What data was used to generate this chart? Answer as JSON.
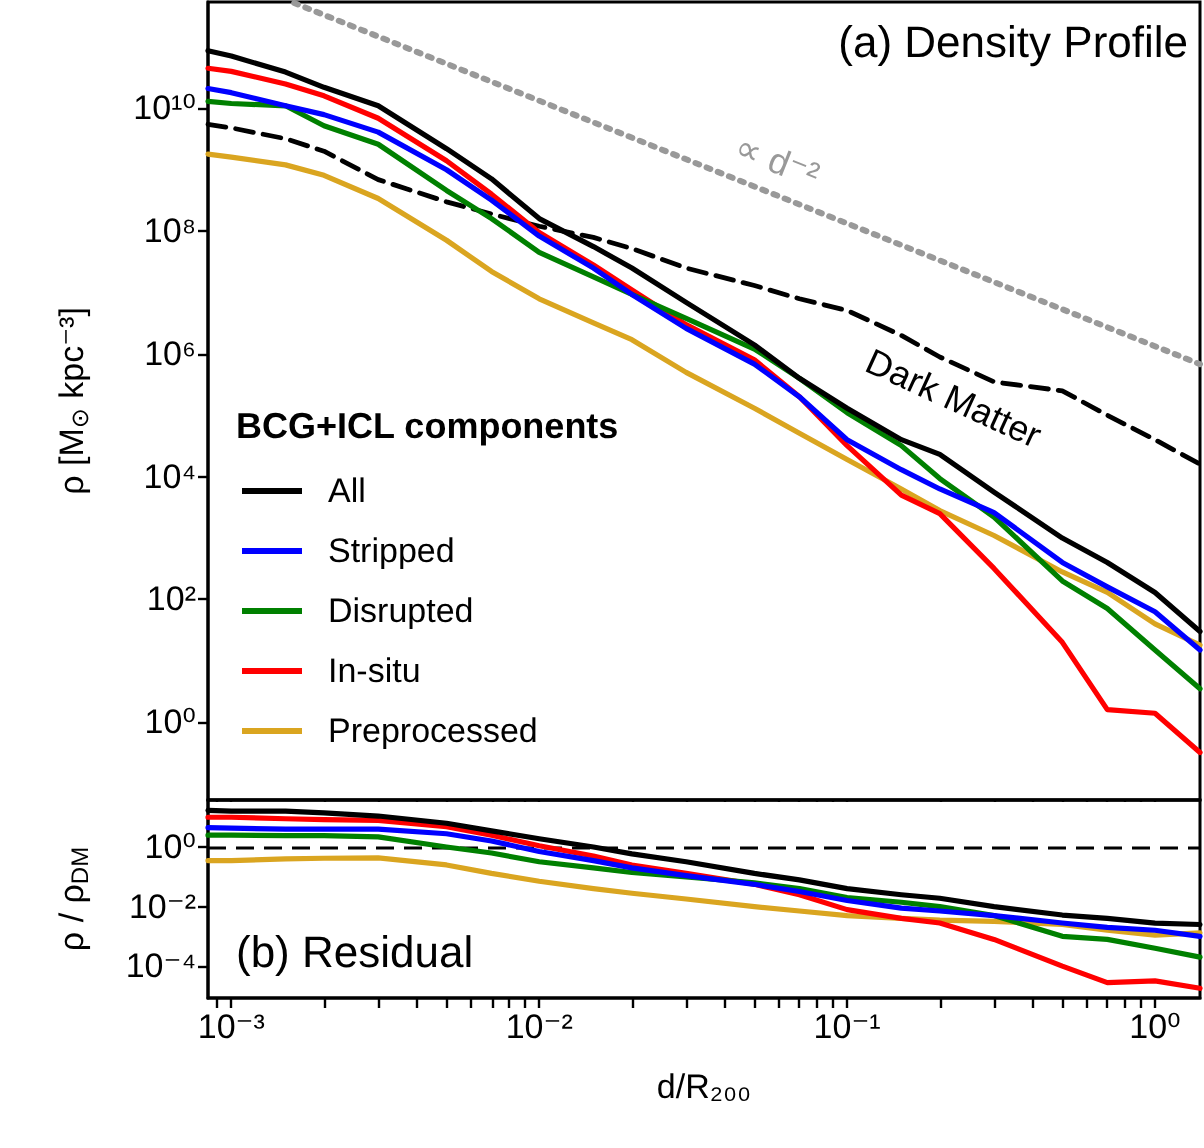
{
  "chart_data": [
    {
      "type": "line",
      "title": "(a) Density Profile",
      "ylabel": "ρ [M$_{⊙}$ kpc⁻³]",
      "legend_title": "BCG+ICL components",
      "legend": "bottom left",
      "log": "xy",
      "marker": "none",
      "tick_labels": "y",
      "x": [
        0.00084,
        0.001,
        0.0015,
        0.002,
        0.003,
        0.005,
        0.007,
        0.01,
        0.015,
        0.02,
        0.03,
        0.05,
        0.07,
        0.1,
        0.15,
        0.2,
        0.3,
        0.5,
        0.7,
        1.0,
        1.4
      ],
      "xlim": [
        0.00084,
        1.4
      ],
      "ylim": [
        0.054,
        540000000000.0
      ],
      "xticks": [
        {
          "value": 0.0009,
          "label": null
        },
        {
          "value": 0.001,
          "label": null
        },
        {
          "value": 0.002,
          "label": null
        },
        {
          "value": 0.003,
          "label": null
        },
        {
          "value": 0.004,
          "label": null
        },
        {
          "value": 0.005,
          "label": null
        },
        {
          "value": 0.006,
          "label": null
        },
        {
          "value": 0.007,
          "label": null
        },
        {
          "value": 0.008,
          "label": null
        },
        {
          "value": 0.009,
          "label": null
        },
        {
          "value": 0.01,
          "label": null
        },
        {
          "value": 0.02,
          "label": null
        },
        {
          "value": 0.03,
          "label": null
        },
        {
          "value": 0.04,
          "label": null
        },
        {
          "value": 0.05,
          "label": null
        },
        {
          "value": 0.06,
          "label": null
        },
        {
          "value": 0.07,
          "label": null
        },
        {
          "value": 0.08,
          "label": null
        },
        {
          "value": 0.09,
          "label": null
        },
        {
          "value": 0.1,
          "label": null
        },
        {
          "value": 0.2,
          "label": null
        },
        {
          "value": 0.3,
          "label": null
        },
        {
          "value": 0.4,
          "label": null
        },
        {
          "value": 0.5,
          "label": null
        },
        {
          "value": 0.6,
          "label": null
        },
        {
          "value": 0.7,
          "label": null
        },
        {
          "value": 0.8,
          "label": null
        },
        {
          "value": 0.9,
          "label": null
        },
        {
          "value": 1,
          "label": null
        }
      ],
      "yticks": [
        {
          "value": 1,
          "label": "10⁰"
        },
        {
          "value": 100,
          "label": "10²"
        },
        {
          "value": 10000,
          "label": "10⁴"
        },
        {
          "value": 1000000,
          "label": "10⁶"
        },
        {
          "value": 100000000,
          "label": "10⁸"
        },
        {
          "value": 10000000000,
          "label": "10¹⁰"
        }
      ],
      "series": [
        {
          "name": "All",
          "color": "#000000",
          "values": [
            87000000000.0,
            71000000000.0,
            39000000000.0,
            22000000000.0,
            11000000000.0,
            2200000000.0,
            710000000.0,
            160000000.0,
            56000000.0,
            25000000.0,
            6900000.0,
            1400000.0,
            400000.0,
            130000.0,
            40000.0,
            23000.0,
            5600.0,
            1000.0,
            400,
            130,
            30
          ]
        },
        {
          "name": "Stripped",
          "color": "#0000ff",
          "values": [
            21000000000.0,
            18000000000.0,
            11000000000.0,
            7900000000.0,
            4100000000.0,
            1000000000.0,
            320000000.0,
            83000000.0,
            25000000.0,
            9300000.0,
            2600000.0,
            680000.0,
            200000.0,
            40000.0,
            13000.0,
            6300.0,
            2600.0,
            400,
            160,
            63,
            15
          ]
        },
        {
          "name": "Disrupted",
          "color": "#008000",
          "values": [
            13000000000.0,
            12000000000.0,
            11000000000.0,
            5200000000.0,
            2600000000.0,
            460000000.0,
            160000000.0,
            45000000.0,
            18000000.0,
            9300000.0,
            3800000.0,
            1200000.0,
            400000.0,
            110000.0,
            32000.0,
            9300.0,
            2200.0,
            200,
            71,
            15,
            3.5
          ]
        },
        {
          "name": "In-situ",
          "color": "#ff0000",
          "values": [
            45000000000.0,
            40000000000.0,
            25000000000.0,
            16000000000.0,
            6900000000.0,
            1400000000.0,
            400000000.0,
            95000000.0,
            28000000.0,
            11000000.0,
            3000000.0,
            800000.0,
            200000.0,
            32000.0,
            5000.0,
            2500.0,
            320,
            20,
            1.6,
            1.4,
            0.32
          ]
        },
        {
          "name": "Preprocessed",
          "color": "#daa520",
          "values": [
            1800000000.0,
            1600000000.0,
            1200000000.0,
            810000000.0,
            340000000.0,
            71000000.0,
            22000000.0,
            7900000.0,
            3200000.0,
            1700000.0,
            500000.0,
            130000.0,
            51000.0,
            19000.0,
            6300.0,
            2800.0,
            1100.0,
            280,
            130,
            40,
            18
          ]
        },
        {
          "name": "Dark Matter",
          "color": "#000000",
          "line_style": "dashed",
          "values": [
            5500000000.0,
            4800000000.0,
            3200000000.0,
            2000000000.0,
            690000000.0,
            300000000.0,
            190000000.0,
            120000000.0,
            79000000.0,
            52000000.0,
            25000000.0,
            13000000.0,
            7900000.0,
            5100000.0,
            2000000.0,
            890000.0,
            350000.0,
            250000.0,
            100000.0,
            40000.0,
            16000.0
          ]
        },
        {
          "name": "∝ d⁻²",
          "color": "#999999",
          "line_style": "dotted",
          "x": [
            0.0016,
            1.4
          ],
          "values": [
            520000000000.0,
            680000.0
          ]
        }
      ]
    },
    {
      "type": "line",
      "title": "(b) Residual",
      "xlabel": "d/R₂₀₀",
      "ylabel": "ρ / ρ$_{DM}$",
      "log": "xy",
      "marker": "none",
      "x": [
        0.00084,
        0.001,
        0.0015,
        0.002,
        0.003,
        0.005,
        0.007,
        0.01,
        0.015,
        0.02,
        0.03,
        0.05,
        0.07,
        0.1,
        0.15,
        0.2,
        0.3,
        0.5,
        0.7,
        1.0,
        1.4
      ],
      "xlim": [
        0.00084,
        1.4
      ],
      "ylim": [
        8.5e-06,
        38
      ],
      "xticks": [
        {
          "value": 0.0009,
          "label": null
        },
        {
          "value": 0.001,
          "label": "10⁻³"
        },
        {
          "value": 0.002,
          "label": null
        },
        {
          "value": 0.003,
          "label": null
        },
        {
          "value": 0.004,
          "label": null
        },
        {
          "value": 0.005,
          "label": null
        },
        {
          "value": 0.006,
          "label": null
        },
        {
          "value": 0.007,
          "label": null
        },
        {
          "value": 0.008,
          "label": null
        },
        {
          "value": 0.009,
          "label": null
        },
        {
          "value": 0.01,
          "label": "10⁻²"
        },
        {
          "value": 0.02,
          "label": null
        },
        {
          "value": 0.03,
          "label": null
        },
        {
          "value": 0.04,
          "label": null
        },
        {
          "value": 0.05,
          "label": null
        },
        {
          "value": 0.06,
          "label": null
        },
        {
          "value": 0.07,
          "label": null
        },
        {
          "value": 0.08,
          "label": null
        },
        {
          "value": 0.09,
          "label": null
        },
        {
          "value": 0.1,
          "label": "10⁻¹"
        },
        {
          "value": 0.2,
          "label": null
        },
        {
          "value": 0.3,
          "label": null
        },
        {
          "value": 0.4,
          "label": null
        },
        {
          "value": 0.5,
          "label": null
        },
        {
          "value": 0.6,
          "label": null
        },
        {
          "value": 0.7,
          "label": null
        },
        {
          "value": 0.8,
          "label": null
        },
        {
          "value": 0.9,
          "label": null
        },
        {
          "value": 1,
          "label": "10⁰"
        }
      ],
      "yticks": [
        {
          "value": 0.0001,
          "label": "10⁻⁴"
        },
        {
          "value": 0.01,
          "label": "10⁻²"
        },
        {
          "value": 1,
          "label": "10⁰"
        }
      ],
      "ref_lines": [
        {
          "axis": "y",
          "value": 1,
          "color": "#000000",
          "line_style": "dashed"
        }
      ],
      "series": [
        {
          "color": "#000000",
          "values": [
            17,
            16,
            16,
            14,
            11,
            6.3,
            3.5,
            1.9,
            1.0,
            0.59,
            0.32,
            0.13,
            0.079,
            0.04,
            0.025,
            0.019,
            0.01,
            0.0052,
            0.004,
            0.0028,
            0.0025
          ]
        },
        {
          "color": "#0000ff",
          "values": [
            4.5,
            4.3,
            4.0,
            4.0,
            4.0,
            2.8,
            1.6,
            0.71,
            0.35,
            0.2,
            0.11,
            0.056,
            0.032,
            0.016,
            0.0089,
            0.0071,
            0.005,
            0.0028,
            0.002,
            0.0016,
            0.001
          ]
        },
        {
          "color": "#008000",
          "values": [
            2.5,
            2.5,
            2.4,
            2.4,
            2.2,
            1.0,
            0.63,
            0.32,
            0.2,
            0.14,
            0.1,
            0.063,
            0.04,
            0.02,
            0.014,
            0.01,
            0.005,
            0.001,
            0.00079,
            0.0004,
            0.0002
          ]
        },
        {
          "color": "#ff0000",
          "values": [
            10,
            10,
            8.9,
            8.3,
            7.9,
            4.8,
            2.5,
            1.1,
            0.5,
            0.25,
            0.13,
            0.056,
            0.025,
            0.0079,
            0.004,
            0.0028,
            0.00079,
            0.0001,
            2.8e-05,
            3.2e-05,
            1.8e-05
          ]
        },
        {
          "color": "#daa520",
          "values": [
            0.35,
            0.35,
            0.4,
            0.42,
            0.43,
            0.25,
            0.13,
            0.071,
            0.04,
            0.028,
            0.018,
            0.01,
            0.0071,
            0.005,
            0.004,
            0.0035,
            0.0032,
            0.0025,
            0.0016,
            0.0011,
            0.0013
          ]
        }
      ]
    }
  ]
}
